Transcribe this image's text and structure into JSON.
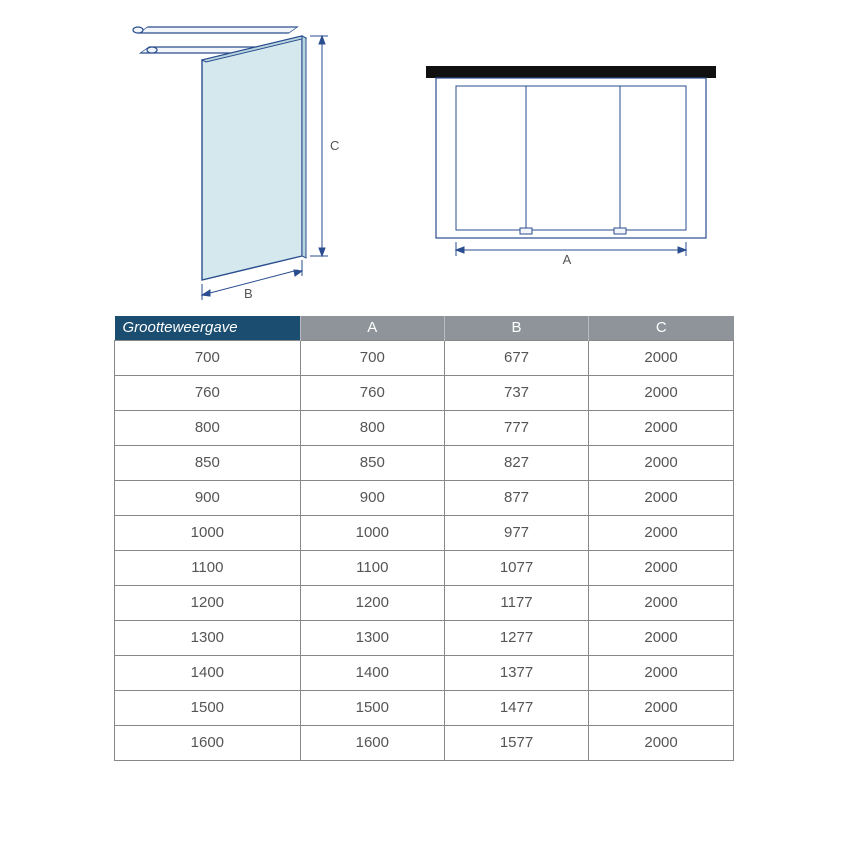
{
  "diagram": {
    "stroke": "#2a4d8f",
    "stroke_light": "#6a86b8",
    "glass_fill": "#d5e8ee",
    "glass_fill2": "#e8f2f5",
    "label_B": "B",
    "label_C": "C",
    "label_A": "A",
    "label_font_size": 12,
    "label_color": "#555555",
    "right_top_fill": "#101010"
  },
  "table": {
    "header_bg_first": "#1a4d6f",
    "header_bg_other": "#8e9499",
    "header_text_color": "#ffffff",
    "border_color": "#888888",
    "cell_text_color": "#555555",
    "font_size": 15,
    "columns": [
      "Grootteweergave",
      "A",
      "B",
      "C"
    ],
    "col_widths_pct": [
      30,
      23.3,
      23.3,
      23.4
    ],
    "rows": [
      [
        "700",
        "700",
        "677",
        "2000"
      ],
      [
        "760",
        "760",
        "737",
        "2000"
      ],
      [
        "800",
        "800",
        "777",
        "2000"
      ],
      [
        "850",
        "850",
        "827",
        "2000"
      ],
      [
        "900",
        "900",
        "877",
        "2000"
      ],
      [
        "1000",
        "1000",
        "977",
        "2000"
      ],
      [
        "1100",
        "1100",
        "1077",
        "2000"
      ],
      [
        "1200",
        "1200",
        "1177",
        "2000"
      ],
      [
        "1300",
        "1300",
        "1277",
        "2000"
      ],
      [
        "1400",
        "1400",
        "1377",
        "2000"
      ],
      [
        "1500",
        "1500",
        "1477",
        "2000"
      ],
      [
        "1600",
        "1600",
        "1577",
        "2000"
      ]
    ]
  }
}
